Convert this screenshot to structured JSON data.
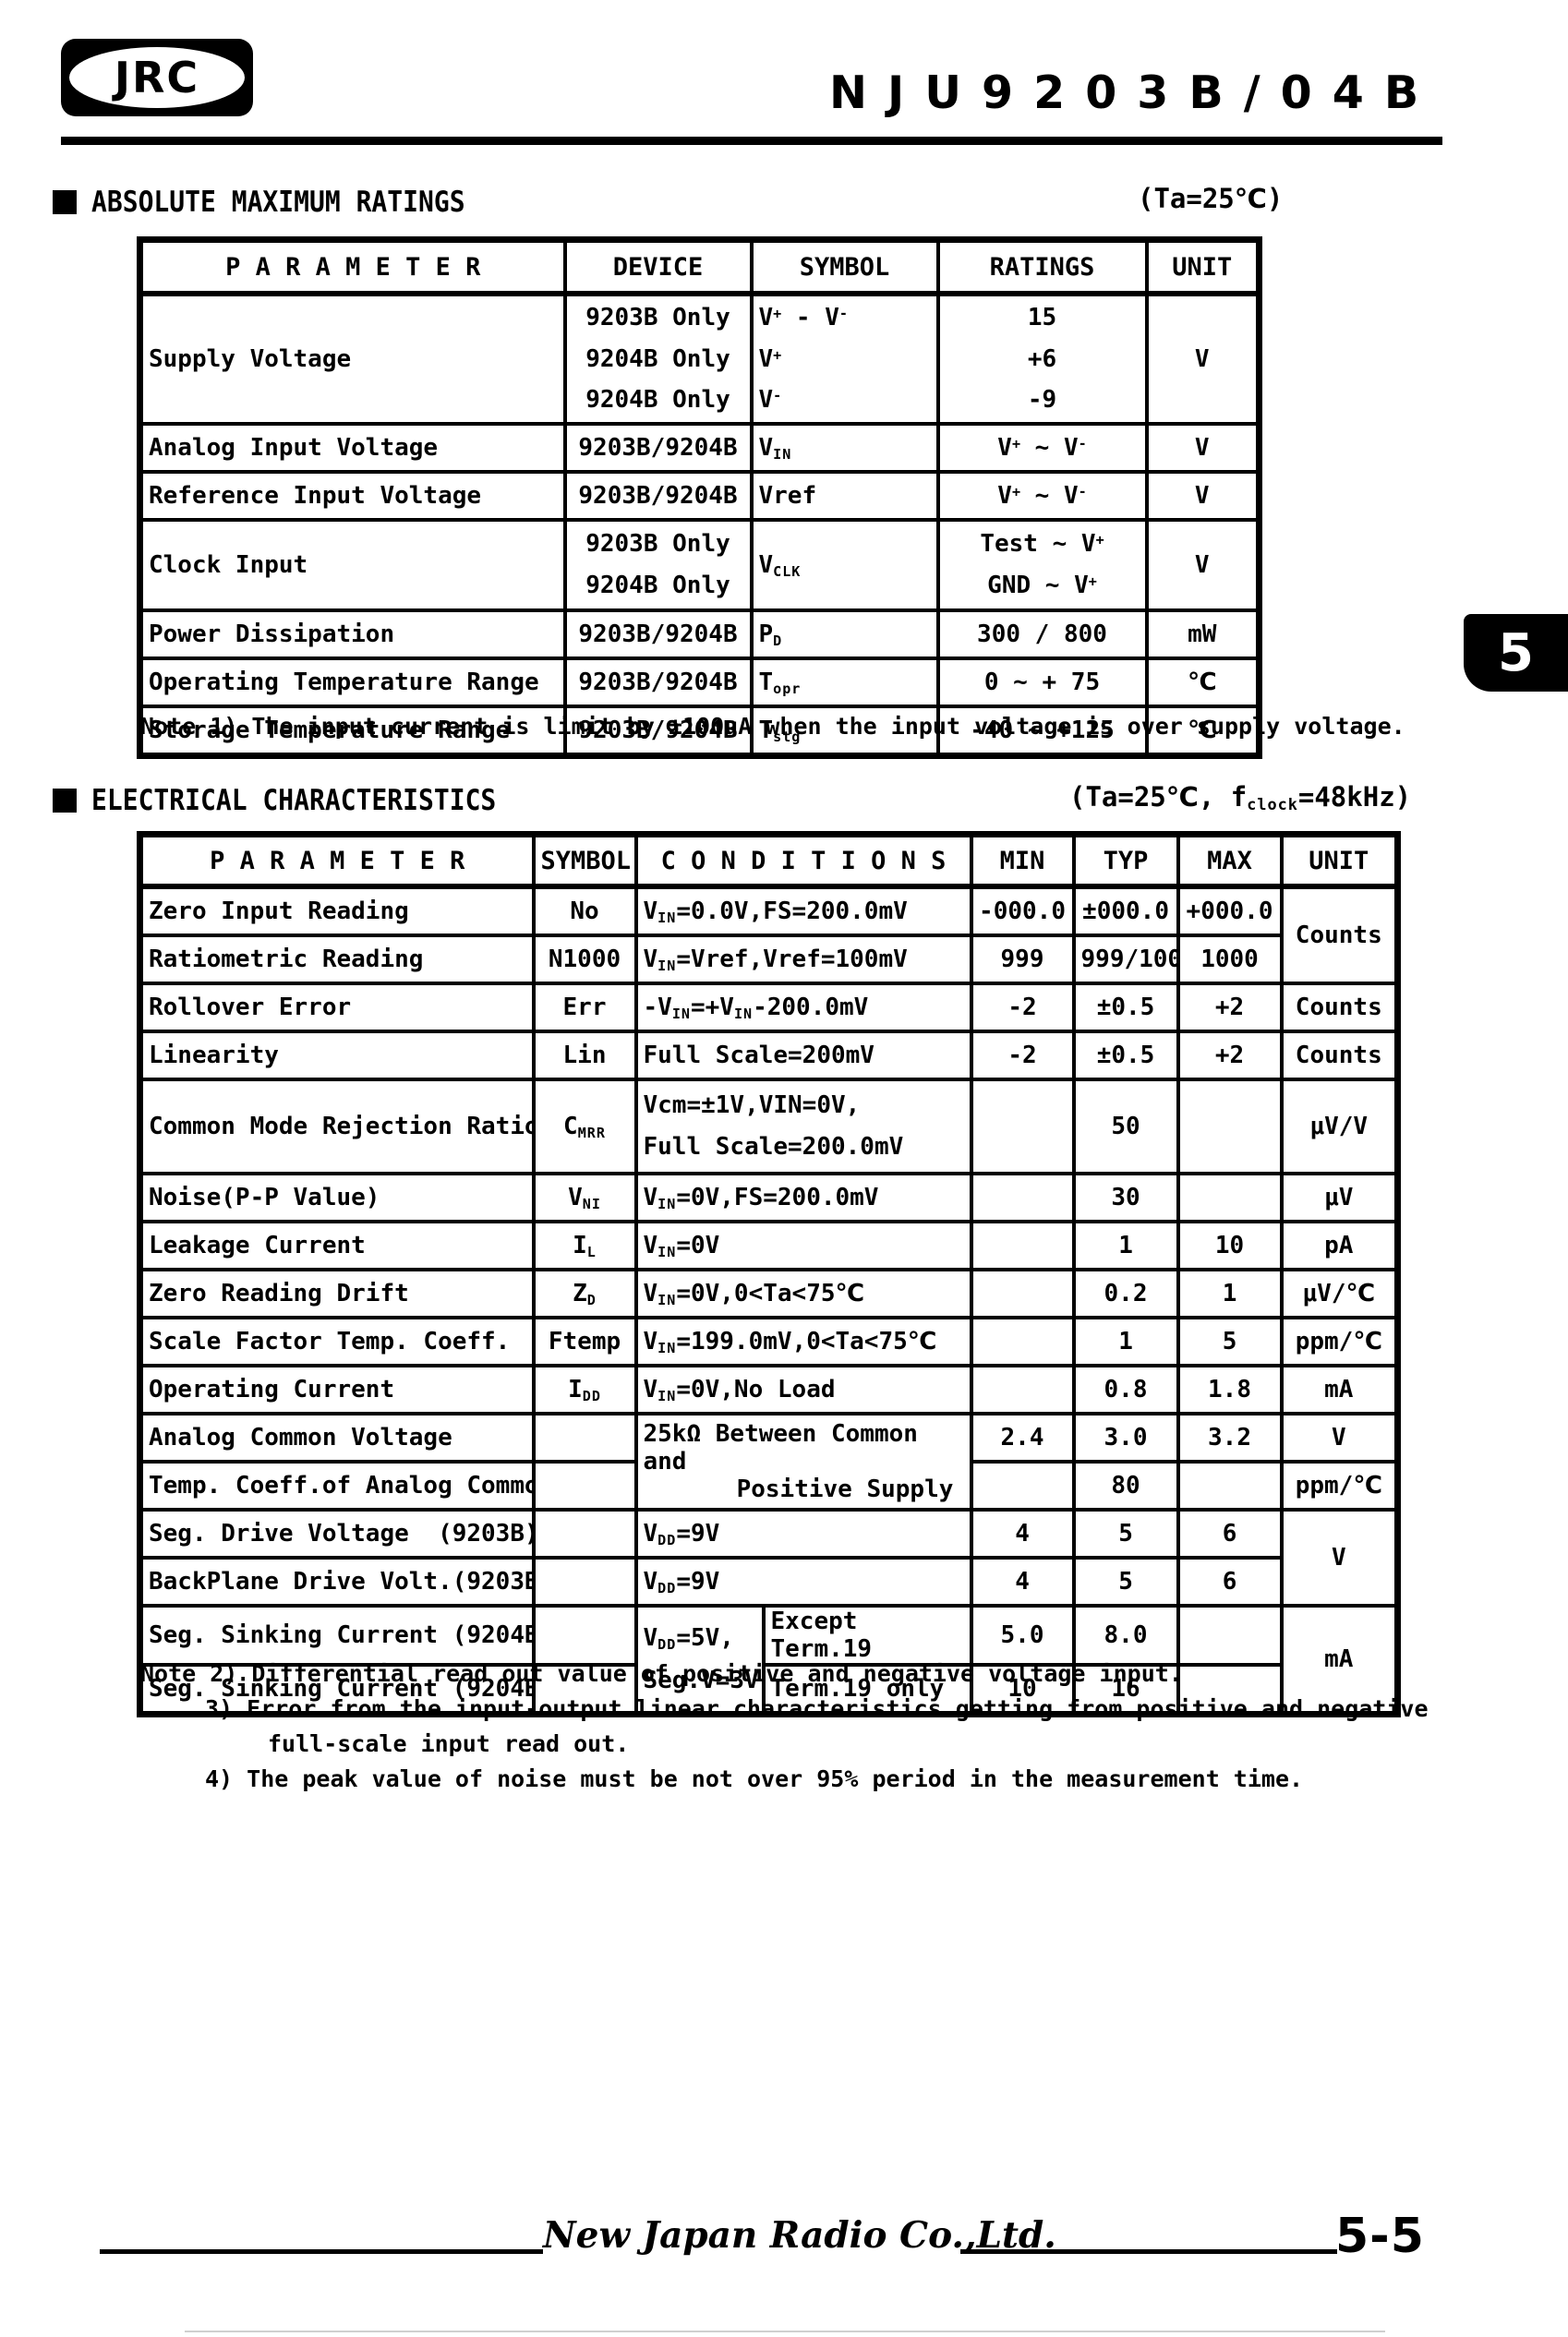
{
  "header": {
    "logo": "JRC",
    "title": "NJU9203B/04B"
  },
  "tab": {
    "label": "5"
  },
  "s1": {
    "title": "ABSOLUTE MAXIMUM RATINGS",
    "cond": "(Ta=25℃)",
    "cols": [
      "P A R A M E T E R",
      "DEVICE",
      "SYMBOL",
      "RATINGS",
      "UNIT"
    ],
    "rows": [
      {
        "p": "Supply Voltage",
        "d": "9203B Only<br>9204B Only<br>9204B Only",
        "s": "V<sup>+</sup> - V<sup>-</sup><br>V<sup>+</sup><br>V<sup>-</sup>",
        "r": "15<br>+6<br>-9",
        "u": "V"
      },
      {
        "p": "Analog Input Voltage",
        "d": "9203B/9204B",
        "s": "V<sub>IN</sub>",
        "r": "V<sup>+</sup> ∼ V<sup>-</sup>",
        "u": "V"
      },
      {
        "p": "Reference Input Voltage",
        "d": "9203B/9204B",
        "s": "Vref",
        "r": "V<sup>+</sup> ∼ V<sup>-</sup>",
        "u": "V"
      },
      {
        "p": "Clock Input",
        "d": "9203B Only<br>9204B Only",
        "s": "V<sub>CLK</sub>",
        "r": "Test ∼ V<sup>+</sup><br>GND ∼ V<sup>+</sup>",
        "u": "V"
      },
      {
        "p": "Power Dissipation",
        "d": "9203B/9204B",
        "s": "P<sub>D</sub>",
        "r": "300 / 800",
        "u": "mW"
      },
      {
        "p": "Operating Temperature Range",
        "d": "9203B/9204B",
        "s": "T<sub>opr</sub>",
        "r": "0 ∼ + 75",
        "u": "℃"
      },
      {
        "p": "Storage Temperature Range",
        "d": "9203B/9204B",
        "s": "T<sub>stg</sub>",
        "r": "-40 ∼ +125",
        "u": "℃"
      }
    ],
    "note": "Note 1) The input current is limit by ±100uA when the input voltage is over supply voltage."
  },
  "s2": {
    "title": "ELECTRICAL CHARACTERISTICS",
    "cond": "(Ta=25℃, f<sub>clock</sub>=48kHz)",
    "cols": [
      "P A R A M E T E R",
      "SYMBOL",
      "C O N D I T I O N S",
      "MIN",
      "TYP",
      "MAX",
      "UNIT"
    ],
    "rows": [
      {
        "p": "Zero Input Reading",
        "s": "No",
        "c": "V<sub>IN</sub>=0.0V,FS=200.0mV",
        "mn": "-000.0",
        "ty": "±000.0",
        "mx": "+000.0",
        "u": "Counts"
      },
      {
        "p": "Ratiometric Reading",
        "s": "N1000",
        "c": "V<sub>IN</sub>=Vref,Vref=100mV",
        "mn": "999",
        "ty": "999/1000",
        "mx": "1000"
      },
      {
        "p": "Rollover Error",
        "s": "Err",
        "c": "-V<sub>IN</sub>=+V<sub>IN</sub>-200.0mV",
        "mn": "-2",
        "ty": "±0.5",
        "mx": "+2",
        "u": "Counts"
      },
      {
        "p": "Linearity",
        "s": "Lin",
        "c": "Full Scale=200mV",
        "mn": "-2",
        "ty": "±0.5",
        "mx": "+2",
        "u": "Counts"
      },
      {
        "p": "Common Mode Rejection Ratio",
        "s": "C<sub>MRR</sub>",
        "c": "Vcm=±1V,VIN=0V,<br>Full Scale=200.0mV",
        "mn": "",
        "ty": "50",
        "mx": "",
        "u": "μV/V"
      },
      {
        "p": "Noise(P-P Value)",
        "s": "V<sub>NI</sub>",
        "c": "V<sub>IN</sub>=0V,FS=200.0mV",
        "mn": "",
        "ty": "30",
        "mx": "",
        "u": "μV"
      },
      {
        "p": "Leakage Current",
        "s": "I<sub>L</sub>",
        "c": "V<sub>IN</sub>=0V",
        "mn": "",
        "ty": "1",
        "mx": "10",
        "u": "pA"
      },
      {
        "p": "Zero Reading Drift",
        "s": "Z<sub>D</sub>",
        "c": "V<sub>IN</sub>=0V,0&lt;Ta&lt;75℃",
        "mn": "",
        "ty": "0.2",
        "mx": "1",
        "u": "μV/℃"
      },
      {
        "p": "Scale Factor Temp. Coeff.",
        "s": "Ftemp",
        "c": "V<sub>IN</sub>=199.0mV,0&lt;Ta&lt;75℃",
        "mn": "",
        "ty": "1",
        "mx": "5",
        "u": "ppm/℃"
      },
      {
        "p": "Operating Current",
        "s": "I<sub>DD</sub>",
        "c": "V<sub>IN</sub>=0V,No Load",
        "mn": "",
        "ty": "0.8",
        "mx": "1.8",
        "u": "mA"
      },
      {
        "p": "Analog Common Voltage",
        "s": "",
        "c1": "25kΩ Between Common and",
        "c2": "Positive Supply",
        "mn": "2.4",
        "ty": "3.0",
        "mx": "3.2",
        "u": "V"
      },
      {
        "p": "Temp. Coeff.of Analog Common",
        "s": "",
        "mn": "",
        "ty": "80",
        "mx": "",
        "u": "ppm/℃"
      },
      {
        "p": "Seg. Drive Voltage  (9203B)",
        "s": "",
        "c": "V<sub>DD</sub>=9V",
        "mn": "4",
        "ty": "5",
        "mx": "6",
        "u": "V"
      },
      {
        "p": "BackPlane Drive Volt.(9203B)",
        "s": "",
        "c": "V<sub>DD</sub>=9V",
        "mn": "4",
        "ty": "5",
        "mx": "6"
      },
      {
        "p": "Seg. Sinking Current (9204B)",
        "s": "",
        "ca1": "V<sub>DD</sub>=5V,",
        "ca2": "Seg.V=3V",
        "cb": "Except Term.19",
        "mn": "5.0",
        "ty": "8.0",
        "mx": "",
        "u": "mA"
      },
      {
        "p": "Seg. Sinking Current (9204B)",
        "s": "",
        "cb": "Term.19 only",
        "mn": "10",
        "ty": "16",
        "mx": ""
      }
    ],
    "notes": [
      "Note 2) Differential read out value of positive and negative voltage input.",
      "3) Error from the input-output linear characteristics getting from positive and negative",
      "full-scale input read out.",
      "4) The peak value of noise must be not over 95% period in the measurement time."
    ]
  },
  "footer": {
    "company": "New Japan Radio Co.,Ltd.",
    "page": "5-5"
  }
}
